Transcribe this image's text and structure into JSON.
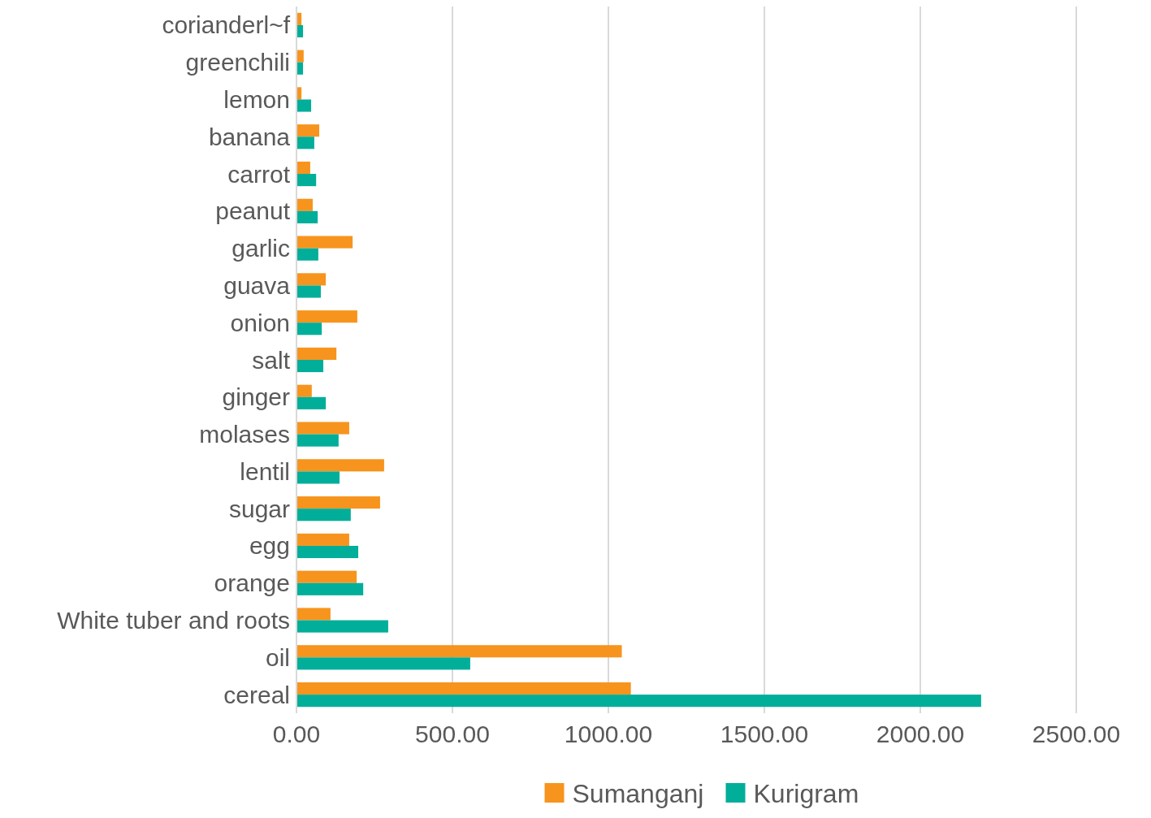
{
  "chart_data": {
    "type": "bar",
    "orientation": "horizontal",
    "categories": [
      "corianderl~f",
      "greenchili",
      "lemon",
      "banana",
      "carrot",
      "peanut",
      "garlic",
      "guava",
      "onion",
      "salt",
      "ginger",
      "molases",
      "lentil",
      "sugar",
      "egg",
      "orange",
      "White tuber and roots",
      "oil",
      "cereal"
    ],
    "series": [
      {
        "name": "Sumanganj",
        "color": "#f7941d",
        "values": [
          16,
          23,
          16,
          73,
          44,
          52,
          180,
          94,
          195,
          128,
          49,
          169,
          281,
          268,
          169,
          193,
          109,
          1043,
          1072
        ]
      },
      {
        "name": "Kurigram",
        "color": "#00ae9a",
        "values": [
          21,
          21,
          47,
          57,
          63,
          68,
          70,
          78,
          81,
          86,
          94,
          135,
          138,
          174,
          198,
          214,
          294,
          557,
          2195
        ]
      }
    ],
    "xlim": [
      0,
      2500
    ],
    "xticks": [
      {
        "value": 0,
        "label": "0.00"
      },
      {
        "value": 500,
        "label": "500.00"
      },
      {
        "value": 1000,
        "label": "1000.00"
      },
      {
        "value": 1500,
        "label": "1500.00"
      },
      {
        "value": 2000,
        "label": "2000.00"
      },
      {
        "value": 2500,
        "label": "2500.00"
      }
    ],
    "grid": "x",
    "legend": "bottom"
  }
}
